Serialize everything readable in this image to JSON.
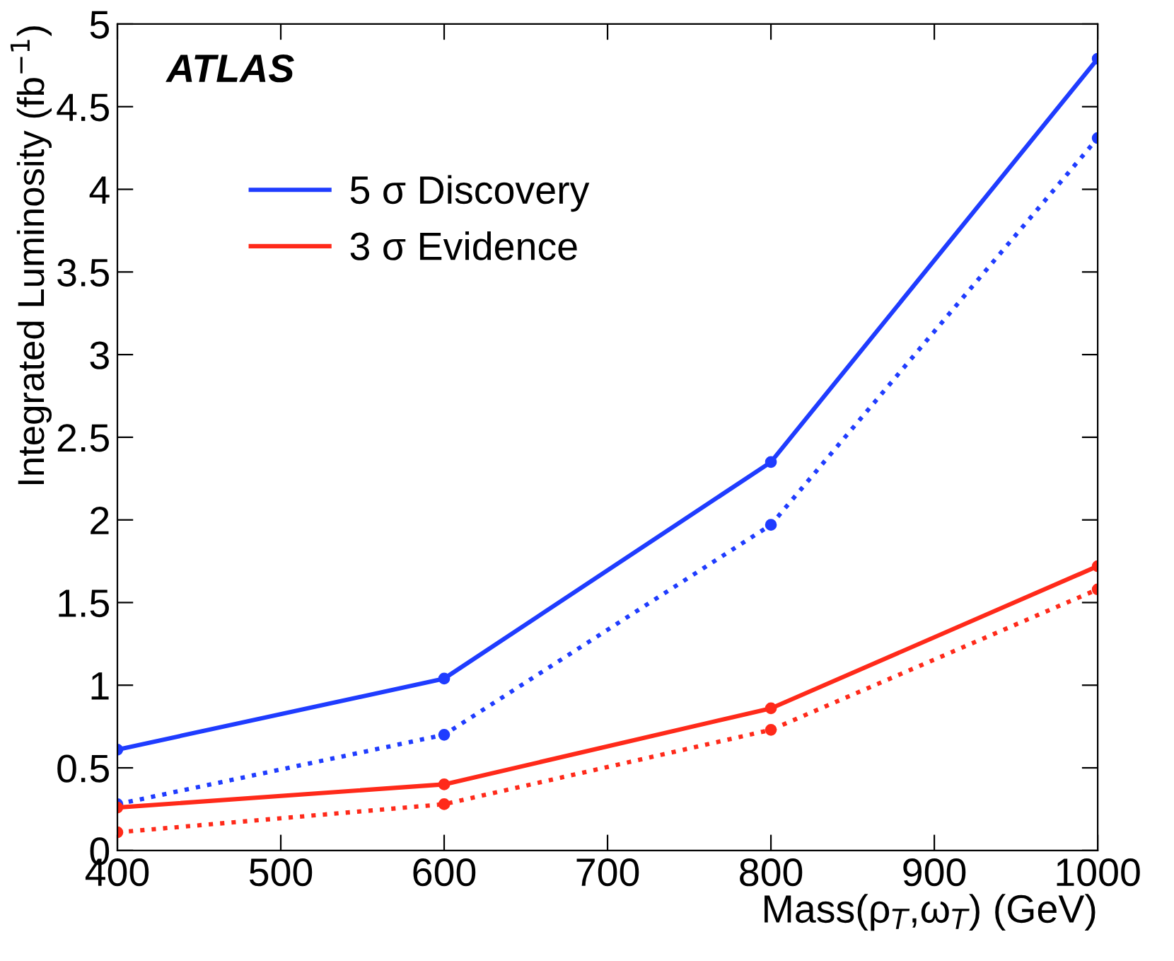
{
  "chart_data": {
    "type": "line",
    "xlabel": "Mass(ρ$_{T}$,ω$_{T}$) (GeV)",
    "ylabel": "Integrated Luminosity (fb$^{−1}$)",
    "annotations": [
      "ATLAS"
    ],
    "x": [
      400,
      600,
      800,
      1000
    ],
    "series": [
      {
        "name": "5 σ Discovery",
        "color": "#1f3cff",
        "values": [
          0.61,
          1.04,
          2.35,
          4.79
        ],
        "line_style": "solid"
      },
      {
        "color": "#1f3cff",
        "values": [
          0.28,
          0.7,
          1.97,
          4.31
        ],
        "line_style": "dotted"
      },
      {
        "name": "3 σ Evidence",
        "color": "#ff2a1a",
        "values": [
          0.26,
          0.4,
          0.86,
          1.72
        ],
        "line_style": "solid"
      },
      {
        "color": "#ff2a1a",
        "values": [
          0.11,
          0.28,
          0.73,
          1.58
        ],
        "line_style": "dotted"
      }
    ],
    "xlim": [
      400,
      1000
    ],
    "ylim": [
      0,
      5
    ],
    "xticks": [
      400,
      500,
      600,
      700,
      800,
      900,
      1000
    ],
    "yticks": [
      0,
      0.5,
      1,
      1.5,
      2,
      2.5,
      3,
      3.5,
      4,
      4.5,
      5
    ],
    "marker": "circle",
    "grid": false,
    "legend": "top left"
  }
}
